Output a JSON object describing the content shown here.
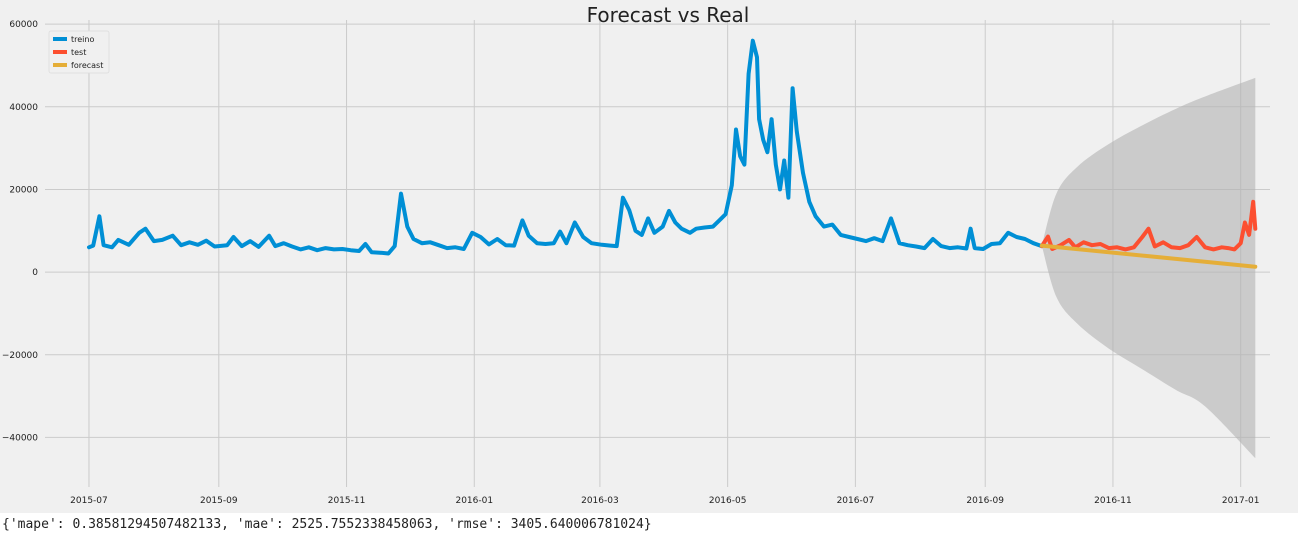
{
  "chart_data": {
    "type": "line",
    "title": "Forecast vs Real",
    "xlabel": "",
    "ylabel": "",
    "xlim": [
      "2015-06-10",
      "2017-01-15"
    ],
    "ylim": [
      -52000,
      61000
    ],
    "grid": true,
    "legend_position": "top-left",
    "x_ticks": [
      "2015-07",
      "2015-09",
      "2015-11",
      "2016-01",
      "2016-03",
      "2016-05",
      "2016-07",
      "2016-09",
      "2016-11",
      "2017-01"
    ],
    "x_tick_dates": [
      "2015-07-01",
      "2015-09-01",
      "2015-11-01",
      "2016-01-01",
      "2016-03-01",
      "2016-05-01",
      "2016-07-01",
      "2016-09-01",
      "2016-11-01",
      "2017-01-01"
    ],
    "y_ticks": [
      60000,
      40000,
      20000,
      0,
      -20000,
      -40000
    ],
    "y_tick_labels": [
      "60000",
      "40000",
      "20000",
      "0",
      "−20000",
      "−40000"
    ],
    "colors": {
      "treino": "#008fd5",
      "test": "#fc4f30",
      "forecast": "#e5ae38",
      "band": "#b3b3b3"
    },
    "series": [
      {
        "name": "treino",
        "points": [
          [
            "2015-07-01",
            6000
          ],
          [
            "2015-07-03",
            6400
          ],
          [
            "2015-07-06",
            13500
          ],
          [
            "2015-07-08",
            6500
          ],
          [
            "2015-07-12",
            6000
          ],
          [
            "2015-07-15",
            7800
          ],
          [
            "2015-07-20",
            6600
          ],
          [
            "2015-07-25",
            9500
          ],
          [
            "2015-07-28",
            10500
          ],
          [
            "2015-08-01",
            7500
          ],
          [
            "2015-08-05",
            7800
          ],
          [
            "2015-08-10",
            8800
          ],
          [
            "2015-08-14",
            6500
          ],
          [
            "2015-08-18",
            7200
          ],
          [
            "2015-08-22",
            6600
          ],
          [
            "2015-08-26",
            7600
          ],
          [
            "2015-08-30",
            6200
          ],
          [
            "2015-09-05",
            6500
          ],
          [
            "2015-09-08",
            8500
          ],
          [
            "2015-09-12",
            6300
          ],
          [
            "2015-09-16",
            7500
          ],
          [
            "2015-09-20",
            6100
          ],
          [
            "2015-09-25",
            8800
          ],
          [
            "2015-09-28",
            6300
          ],
          [
            "2015-10-02",
            7000
          ],
          [
            "2015-10-06",
            6200
          ],
          [
            "2015-10-10",
            5500
          ],
          [
            "2015-10-14",
            6000
          ],
          [
            "2015-10-18",
            5300
          ],
          [
            "2015-10-22",
            5800
          ],
          [
            "2015-10-26",
            5500
          ],
          [
            "2015-10-30",
            5600
          ],
          [
            "2015-11-03",
            5300
          ],
          [
            "2015-11-07",
            5100
          ],
          [
            "2015-11-10",
            6800
          ],
          [
            "2015-11-13",
            4800
          ],
          [
            "2015-11-17",
            4700
          ],
          [
            "2015-11-21",
            4500
          ],
          [
            "2015-11-24",
            6300
          ],
          [
            "2015-11-27",
            19000
          ],
          [
            "2015-11-30",
            11000
          ],
          [
            "2015-12-03",
            8000
          ],
          [
            "2015-12-07",
            7000
          ],
          [
            "2015-12-11",
            7200
          ],
          [
            "2015-12-15",
            6500
          ],
          [
            "2015-12-19",
            5800
          ],
          [
            "2015-12-23",
            6000
          ],
          [
            "2015-12-27",
            5600
          ],
          [
            "2015-12-31",
            9500
          ],
          [
            "2016-01-04",
            8500
          ],
          [
            "2016-01-08",
            6700
          ],
          [
            "2016-01-12",
            8000
          ],
          [
            "2016-01-16",
            6500
          ],
          [
            "2016-01-20",
            6400
          ],
          [
            "2016-01-24",
            12500
          ],
          [
            "2016-01-27",
            8800
          ],
          [
            "2016-01-31",
            7000
          ],
          [
            "2016-02-04",
            6800
          ],
          [
            "2016-02-08",
            7000
          ],
          [
            "2016-02-11",
            9800
          ],
          [
            "2016-02-14",
            7000
          ],
          [
            "2016-02-18",
            12000
          ],
          [
            "2016-02-22",
            8500
          ],
          [
            "2016-02-26",
            7000
          ],
          [
            "2016-03-02",
            6600
          ],
          [
            "2016-03-06",
            6400
          ],
          [
            "2016-03-09",
            6300
          ],
          [
            "2016-03-12",
            18000
          ],
          [
            "2016-03-15",
            15000
          ],
          [
            "2016-03-18",
            10000
          ],
          [
            "2016-03-21",
            9000
          ],
          [
            "2016-03-24",
            13000
          ],
          [
            "2016-03-27",
            9500
          ],
          [
            "2016-03-31",
            11000
          ],
          [
            "2016-04-03",
            14800
          ],
          [
            "2016-04-06",
            12000
          ],
          [
            "2016-04-09",
            10500
          ],
          [
            "2016-04-13",
            9500
          ],
          [
            "2016-04-16",
            10500
          ],
          [
            "2016-04-20",
            10800
          ],
          [
            "2016-04-24",
            11000
          ],
          [
            "2016-04-27",
            12500
          ],
          [
            "2016-04-30",
            14000
          ],
          [
            "2016-05-03",
            21000
          ],
          [
            "2016-05-05",
            34500
          ],
          [
            "2016-05-07",
            28000
          ],
          [
            "2016-05-09",
            26000
          ],
          [
            "2016-05-11",
            48000
          ],
          [
            "2016-05-13",
            56000
          ],
          [
            "2016-05-15",
            52000
          ],
          [
            "2016-05-16",
            37000
          ],
          [
            "2016-05-18",
            32000
          ],
          [
            "2016-05-20",
            29000
          ],
          [
            "2016-05-22",
            37000
          ],
          [
            "2016-05-24",
            26000
          ],
          [
            "2016-05-26",
            20000
          ],
          [
            "2016-05-28",
            27000
          ],
          [
            "2016-05-30",
            18000
          ],
          [
            "2016-06-01",
            44500
          ],
          [
            "2016-06-03",
            34000
          ],
          [
            "2016-06-06",
            24000
          ],
          [
            "2016-06-09",
            17000
          ],
          [
            "2016-06-12",
            13500
          ],
          [
            "2016-06-16",
            11000
          ],
          [
            "2016-06-20",
            11500
          ],
          [
            "2016-06-24",
            9000
          ],
          [
            "2016-06-28",
            8500
          ],
          [
            "2016-07-02",
            8000
          ],
          [
            "2016-07-06",
            7500
          ],
          [
            "2016-07-10",
            8200
          ],
          [
            "2016-07-14",
            7500
          ],
          [
            "2016-07-18",
            13000
          ],
          [
            "2016-07-22",
            7000
          ],
          [
            "2016-07-26",
            6500
          ],
          [
            "2016-07-30",
            6200
          ],
          [
            "2016-08-03",
            5800
          ],
          [
            "2016-08-07",
            8000
          ],
          [
            "2016-08-11",
            6300
          ],
          [
            "2016-08-15",
            5800
          ],
          [
            "2016-08-19",
            6000
          ],
          [
            "2016-08-23",
            5700
          ],
          [
            "2016-08-25",
            10500
          ],
          [
            "2016-08-27",
            5800
          ],
          [
            "2016-08-31",
            5600
          ],
          [
            "2016-09-04",
            6800
          ],
          [
            "2016-09-08",
            7000
          ],
          [
            "2016-09-12",
            9500
          ],
          [
            "2016-09-16",
            8500
          ],
          [
            "2016-09-20",
            8000
          ],
          [
            "2016-09-24",
            7000
          ],
          [
            "2016-09-28",
            6300
          ]
        ]
      },
      {
        "name": "test",
        "points": [
          [
            "2016-09-28",
            6300
          ],
          [
            "2016-10-01",
            8600
          ],
          [
            "2016-10-03",
            5600
          ],
          [
            "2016-10-07",
            6500
          ],
          [
            "2016-10-11",
            7800
          ],
          [
            "2016-10-14",
            6000
          ],
          [
            "2016-10-18",
            7200
          ],
          [
            "2016-10-22",
            6500
          ],
          [
            "2016-10-26",
            6800
          ],
          [
            "2016-10-30",
            5800
          ],
          [
            "2016-11-03",
            6000
          ],
          [
            "2016-11-07",
            5500
          ],
          [
            "2016-11-11",
            6000
          ],
          [
            "2016-11-15",
            8500
          ],
          [
            "2016-11-18",
            10500
          ],
          [
            "2016-11-21",
            6200
          ],
          [
            "2016-11-25",
            7200
          ],
          [
            "2016-11-29",
            6000
          ],
          [
            "2016-12-03",
            5800
          ],
          [
            "2016-12-07",
            6500
          ],
          [
            "2016-12-11",
            8500
          ],
          [
            "2016-12-15",
            6000
          ],
          [
            "2016-12-19",
            5500
          ],
          [
            "2016-12-23",
            6000
          ],
          [
            "2016-12-26",
            5800
          ],
          [
            "2016-12-29",
            5500
          ],
          [
            "2017-01-01",
            7000
          ],
          [
            "2017-01-03",
            12000
          ],
          [
            "2017-01-05",
            9000
          ],
          [
            "2017-01-07",
            17000
          ],
          [
            "2017-01-08",
            10500
          ]
        ]
      },
      {
        "name": "forecast",
        "points": [
          [
            "2016-09-28",
            6400
          ],
          [
            "2017-01-08",
            1300
          ]
        ]
      }
    ],
    "forecast_interval": {
      "dates": [
        "2016-09-28",
        "2016-10-05",
        "2016-10-15",
        "2016-10-30",
        "2016-11-15",
        "2016-12-01",
        "2016-12-15",
        "2017-01-08"
      ],
      "upper": [
        6400,
        19000,
        25500,
        31000,
        35500,
        39500,
        42500,
        47000
      ],
      "lower": [
        6400,
        -6000,
        -12500,
        -18500,
        -23500,
        -28500,
        -32500,
        -45000
      ]
    }
  },
  "output": {
    "metrics_text": "{'mape': 0.38581294507482133, 'mae': 2525.7552338458063, 'rmse': 3405.640006781024}"
  }
}
